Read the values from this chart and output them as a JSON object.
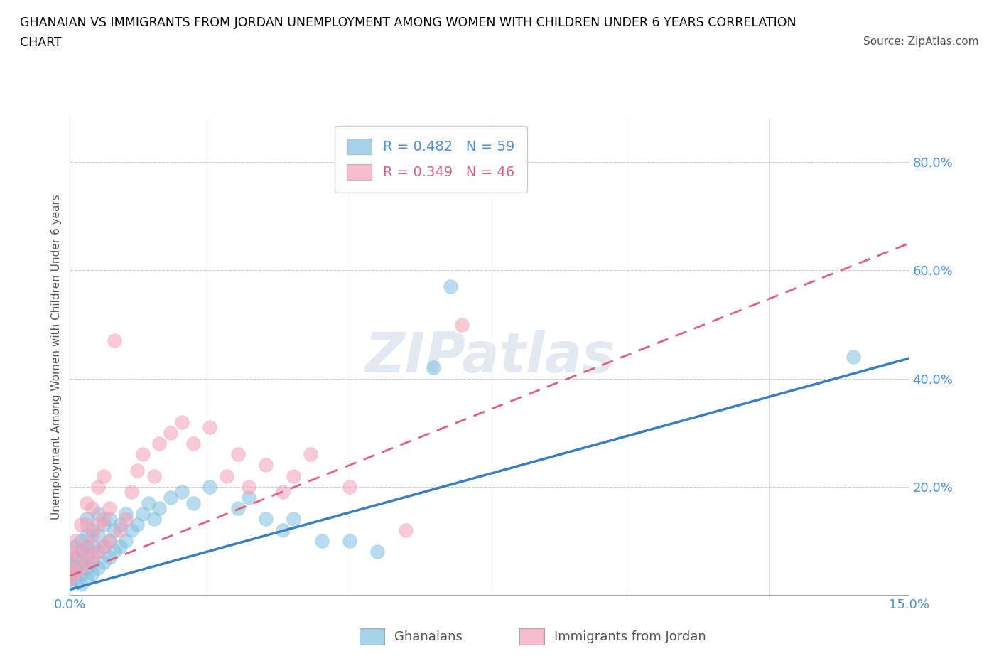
{
  "title_line1": "GHANAIAN VS IMMIGRANTS FROM JORDAN UNEMPLOYMENT AMONG WOMEN WITH CHILDREN UNDER 6 YEARS CORRELATION",
  "title_line2": "CHART",
  "source": "Source: ZipAtlas.com",
  "ylabel": "Unemployment Among Women with Children Under 6 years",
  "xlim": [
    0.0,
    0.15
  ],
  "ylim": [
    0.0,
    0.88
  ],
  "watermark": "ZIPatlas",
  "legend_r1": "R = 0.482   N = 59",
  "legend_r2": "R = 0.349   N = 46",
  "color_blue": "#7fbfdf",
  "color_pink": "#f4a0b8",
  "color_blue_text": "#4a90d9",
  "color_pink_text": "#d9607a",
  "color_blue_line": "#3a7fc1",
  "color_pink_line": "#e06080",
  "color_dashed_line": "#c8c8c8",
  "blue_slope": 2.85,
  "blue_intercept": 0.01,
  "pink_slope": 4.1,
  "pink_intercept": 0.035,
  "ghanaians_x": [
    0.0,
    0.0,
    0.0,
    0.001,
    0.001,
    0.001,
    0.001,
    0.002,
    0.002,
    0.002,
    0.002,
    0.002,
    0.003,
    0.003,
    0.003,
    0.003,
    0.003,
    0.003,
    0.004,
    0.004,
    0.004,
    0.004,
    0.005,
    0.005,
    0.005,
    0.005,
    0.006,
    0.006,
    0.006,
    0.007,
    0.007,
    0.007,
    0.008,
    0.008,
    0.009,
    0.009,
    0.01,
    0.01,
    0.011,
    0.012,
    0.013,
    0.014,
    0.015,
    0.016,
    0.018,
    0.02,
    0.022,
    0.025,
    0.03,
    0.032,
    0.035,
    0.038,
    0.04,
    0.045,
    0.05,
    0.055,
    0.065,
    0.068,
    0.14
  ],
  "ghanaians_y": [
    0.02,
    0.04,
    0.06,
    0.03,
    0.05,
    0.07,
    0.09,
    0.02,
    0.04,
    0.06,
    0.08,
    0.1,
    0.03,
    0.05,
    0.07,
    0.09,
    0.11,
    0.14,
    0.04,
    0.06,
    0.09,
    0.12,
    0.05,
    0.08,
    0.11,
    0.15,
    0.06,
    0.09,
    0.13,
    0.07,
    0.1,
    0.14,
    0.08,
    0.12,
    0.09,
    0.13,
    0.1,
    0.15,
    0.12,
    0.13,
    0.15,
    0.17,
    0.14,
    0.16,
    0.18,
    0.19,
    0.17,
    0.2,
    0.16,
    0.18,
    0.14,
    0.12,
    0.14,
    0.1,
    0.1,
    0.08,
    0.42,
    0.57,
    0.44
  ],
  "jordan_x": [
    0.0,
    0.0,
    0.0,
    0.001,
    0.001,
    0.001,
    0.002,
    0.002,
    0.002,
    0.003,
    0.003,
    0.003,
    0.003,
    0.004,
    0.004,
    0.004,
    0.005,
    0.005,
    0.005,
    0.006,
    0.006,
    0.006,
    0.007,
    0.007,
    0.008,
    0.009,
    0.01,
    0.011,
    0.012,
    0.013,
    0.015,
    0.016,
    0.018,
    0.02,
    0.022,
    0.025,
    0.028,
    0.03,
    0.032,
    0.035,
    0.038,
    0.04,
    0.043,
    0.05,
    0.06,
    0.07
  ],
  "jordan_y": [
    0.03,
    0.05,
    0.08,
    0.04,
    0.07,
    0.1,
    0.05,
    0.08,
    0.13,
    0.06,
    0.09,
    0.13,
    0.17,
    0.07,
    0.11,
    0.16,
    0.08,
    0.13,
    0.2,
    0.09,
    0.14,
    0.22,
    0.1,
    0.16,
    0.47,
    0.12,
    0.14,
    0.19,
    0.23,
    0.26,
    0.22,
    0.28,
    0.3,
    0.32,
    0.28,
    0.31,
    0.22,
    0.26,
    0.2,
    0.24,
    0.19,
    0.22,
    0.26,
    0.2,
    0.12,
    0.5
  ]
}
